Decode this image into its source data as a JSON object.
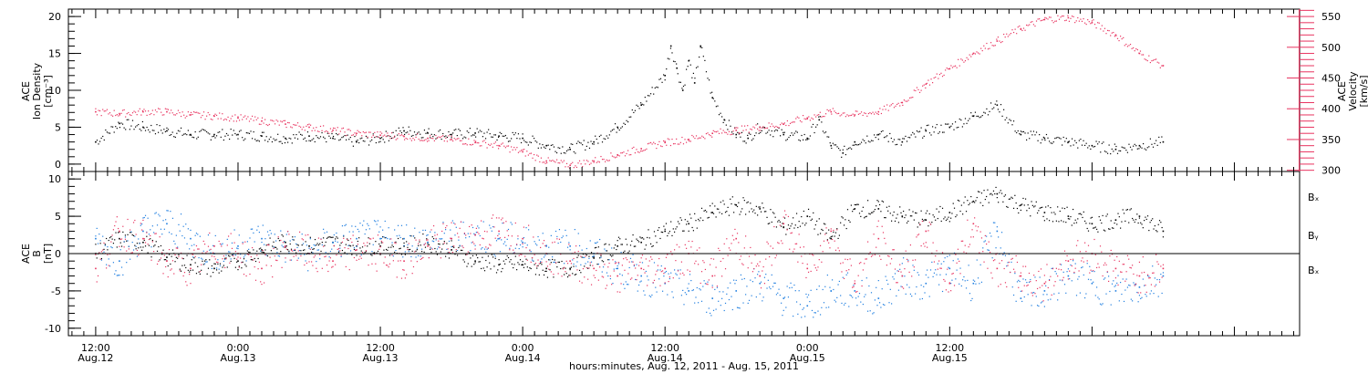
{
  "chart_data": [
    {
      "type": "scatter",
      "panel": "plasma",
      "ylabel_left": [
        "ACE",
        "Ion Density",
        "[cm⁻³]"
      ],
      "ylabel_right": [
        "ACE",
        "Velocity",
        "[km/s]"
      ],
      "ylim_left": [
        -1,
        21
      ],
      "ylim_right": [
        298,
        562
      ],
      "yticks_left": [
        "0",
        "5",
        "10",
        "15",
        "20"
      ],
      "yticks_right": [
        "300",
        "350",
        "400",
        "450",
        "500",
        "550"
      ],
      "series": [
        {
          "axis": "left",
          "color": "#000000",
          "x_hours": [
            0,
            2,
            4,
            6,
            8,
            10,
            12,
            14,
            16,
            18,
            20,
            22,
            24,
            26,
            28,
            30,
            32,
            34,
            36,
            38,
            40,
            42,
            44,
            46,
            48,
            48.5,
            49,
            49.5,
            50,
            50.5,
            51,
            52,
            53,
            54,
            55,
            56,
            58,
            60,
            61,
            62,
            63,
            64,
            66,
            68,
            70,
            72,
            74,
            76,
            78,
            80,
            82,
            84,
            86,
            88,
            90
          ],
          "values": [
            3.0,
            5.5,
            5.0,
            4.5,
            4.0,
            4.0,
            4.0,
            3.8,
            3.5,
            3.8,
            3.5,
            3.0,
            3.5,
            4.5,
            4.2,
            4.0,
            4.2,
            3.8,
            3.5,
            2.5,
            2.0,
            3.0,
            5.0,
            8.0,
            12.0,
            16.0,
            13.0,
            10.0,
            14.0,
            11.0,
            16.0,
            9.0,
            6.0,
            4.0,
            3.5,
            5.0,
            4.0,
            3.5,
            6.0,
            2.5,
            1.5,
            3.0,
            4.0,
            3.0,
            4.5,
            5.0,
            6.5,
            8.0,
            4.0,
            3.5,
            3.0,
            2.5,
            2.0,
            2.5,
            3.0
          ]
        },
        {
          "axis": "right",
          "color": "#e8335f",
          "x_hours": [
            0,
            2,
            4,
            6,
            8,
            10,
            12,
            14,
            16,
            18,
            20,
            22,
            24,
            26,
            28,
            30,
            32,
            34,
            36,
            38,
            40,
            42,
            44,
            46,
            48,
            50,
            52,
            54,
            56,
            58,
            60,
            62,
            64,
            66,
            68,
            70,
            72,
            74,
            76,
            78,
            80,
            82,
            84,
            86,
            88,
            90
          ],
          "values": [
            395,
            392,
            395,
            395,
            390,
            388,
            385,
            380,
            375,
            370,
            365,
            360,
            357,
            355,
            352,
            350,
            345,
            340,
            330,
            315,
            308,
            315,
            325,
            335,
            345,
            350,
            360,
            365,
            370,
            375,
            385,
            395,
            390,
            395,
            410,
            440,
            465,
            490,
            510,
            530,
            545,
            548,
            540,
            520,
            490,
            470
          ]
        }
      ]
    },
    {
      "type": "scatter",
      "panel": "magnetic",
      "ylabel_left": [
        "ACE",
        "B",
        "[nT]"
      ],
      "ylim": [
        -11,
        11
      ],
      "yticks": [
        "-10",
        "-5",
        "0",
        "5",
        "10"
      ],
      "zero_line": true,
      "legend": [
        "Bₓ",
        "Bᵧ",
        "Bₓ"
      ],
      "series": [
        {
          "name": "Bₓ",
          "color": "#000000",
          "x_hours": [
            0,
            2,
            4,
            6,
            8,
            10,
            12,
            14,
            16,
            18,
            20,
            22,
            24,
            26,
            28,
            30,
            32,
            34,
            36,
            38,
            40,
            42,
            44,
            46,
            48,
            50,
            52,
            54,
            56,
            58,
            60,
            62,
            64,
            66,
            68,
            70,
            72,
            74,
            76,
            78,
            80,
            82,
            84,
            86,
            88,
            90
          ],
          "values": [
            0,
            2,
            1.5,
            -0.5,
            -1.5,
            -2,
            -1,
            0.5,
            1.5,
            1,
            1.5,
            1,
            1,
            1,
            1.5,
            0.5,
            -1,
            -1.5,
            -1.5,
            -2,
            -2,
            -0.5,
            1,
            1.5,
            3,
            4,
            5.5,
            6.5,
            6,
            3.5,
            5,
            2,
            6,
            6,
            5,
            4.5,
            5.5,
            7,
            8,
            6.5,
            5.5,
            5,
            4,
            4.5,
            5,
            3
          ]
        },
        {
          "name": "Bᵧ",
          "color": "#1f7ee0",
          "x_hours": [
            0,
            2,
            4,
            6,
            8,
            10,
            12,
            14,
            16,
            18,
            20,
            22,
            24,
            26,
            28,
            30,
            32,
            34,
            36,
            38,
            40,
            42,
            44,
            46,
            48,
            50,
            52,
            54,
            56,
            58,
            60,
            62,
            64,
            66,
            68,
            70,
            72,
            74,
            76,
            78,
            80,
            82,
            84,
            86,
            88,
            90
          ],
          "values": [
            2,
            -1,
            3,
            4,
            2,
            0,
            1,
            2,
            1,
            0,
            1.5,
            2,
            2,
            2,
            1.5,
            2,
            2.5,
            2,
            1.5,
            1,
            1,
            0,
            -2,
            -3,
            -4,
            -5,
            -6,
            -5,
            -4,
            -6,
            -7,
            -5,
            -5,
            -6,
            -3,
            -4,
            -2,
            -4,
            3,
            -6,
            -5,
            -3,
            -4,
            -5,
            -4.5,
            -3
          ]
        },
        {
          "name": "Bₓ",
          "color": "#e8335f",
          "x_hours": [
            0,
            2,
            4,
            6,
            8,
            10,
            12,
            14,
            16,
            18,
            20,
            22,
            24,
            26,
            28,
            30,
            32,
            34,
            36,
            38,
            40,
            42,
            44,
            46,
            48,
            50,
            52,
            54,
            56,
            58,
            60,
            62,
            64,
            66,
            68,
            70,
            72,
            74,
            76,
            78,
            80,
            82,
            84,
            86,
            88,
            90
          ],
          "values": [
            -2,
            3,
            2,
            -1,
            -2,
            1,
            0,
            -2,
            1,
            0,
            -1,
            0.5,
            0,
            -1,
            1,
            2,
            2.5,
            3,
            2,
            0,
            -1,
            -2,
            -3,
            -2,
            -2,
            0,
            -3,
            2,
            -3,
            4,
            -2,
            3,
            -4,
            2,
            -3,
            3,
            -4,
            4,
            -2,
            -3,
            -4,
            -1,
            0,
            -2,
            -3,
            -2
          ]
        }
      ]
    }
  ],
  "xaxis": {
    "x_range_hours": [
      -2.3,
      101.5
    ],
    "major_ticks": [
      {
        "hour": 0,
        "time": "12:00",
        "date": "Aug.12"
      },
      {
        "hour": 12,
        "time": "0:00",
        "date": "Aug.13"
      },
      {
        "hour": 24,
        "time": "12:00",
        "date": "Aug.13"
      },
      {
        "hour": 36,
        "time": "0:00",
        "date": "Aug.14"
      },
      {
        "hour": 48,
        "time": "12:00",
        "date": "Aug.14"
      },
      {
        "hour": 60,
        "time": "0:00",
        "date": "Aug.15"
      },
      {
        "hour": 72,
        "time": "12:00",
        "date": "Aug.15"
      }
    ],
    "title": "hours:minutes, Aug. 12, 2011 - Aug. 15, 2011"
  },
  "data_gaps_hours": [
    [
      90,
      100
    ]
  ],
  "legend_colors": [
    "#000000",
    "#1f7ee0",
    "#e8335f"
  ]
}
